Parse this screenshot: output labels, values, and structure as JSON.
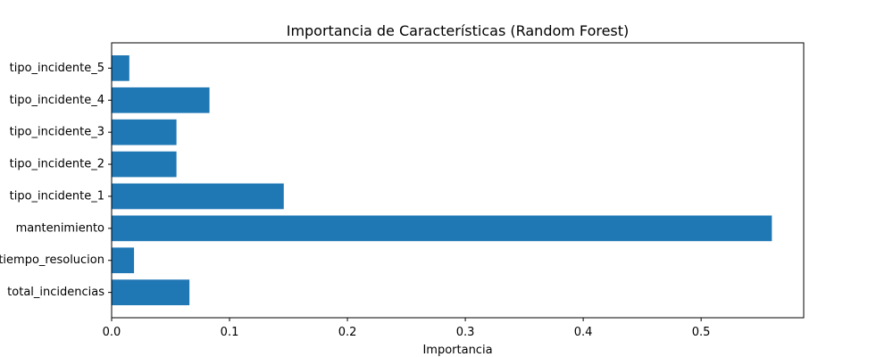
{
  "chart_data": {
    "type": "bar",
    "orientation": "horizontal",
    "title": "Importancia de Características (Random Forest)",
    "xlabel": "Importancia",
    "ylabel": "",
    "categories": [
      "total_incidencias",
      "tiempo_resolucion",
      "mantenimiento",
      "tipo_incidente_1",
      "tipo_incidente_2",
      "tipo_incidente_3",
      "tipo_incidente_4",
      "tipo_incidente_5"
    ],
    "values": [
      0.066,
      0.019,
      0.56,
      0.146,
      0.055,
      0.055,
      0.083,
      0.015
    ],
    "xlim": [
      0.0,
      0.587
    ],
    "xticks": [
      0.0,
      0.1,
      0.2,
      0.3,
      0.4,
      0.5
    ],
    "xtick_labels": [
      "0.0",
      "0.1",
      "0.2",
      "0.3",
      "0.4",
      "0.5"
    ],
    "bar_color": "#1f77b4",
    "grid": false,
    "legend": "none"
  }
}
